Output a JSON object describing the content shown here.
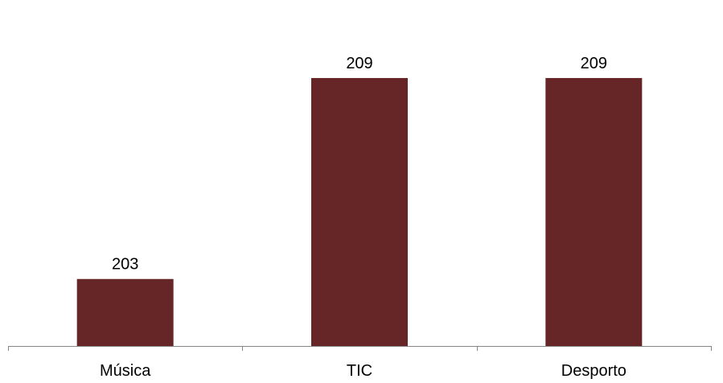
{
  "chart_data": {
    "type": "bar",
    "categories": [
      "Música",
      "TIC",
      "Desporto"
    ],
    "values": [
      203,
      209,
      209
    ],
    "data_labels": [
      "203",
      "209",
      "209"
    ],
    "title": "",
    "xlabel": "",
    "ylabel": "",
    "ylim": [
      201.0,
      210.08
    ],
    "grid": false,
    "legend": "none",
    "bar_color": "#662526",
    "axis_color": "#868686"
  }
}
